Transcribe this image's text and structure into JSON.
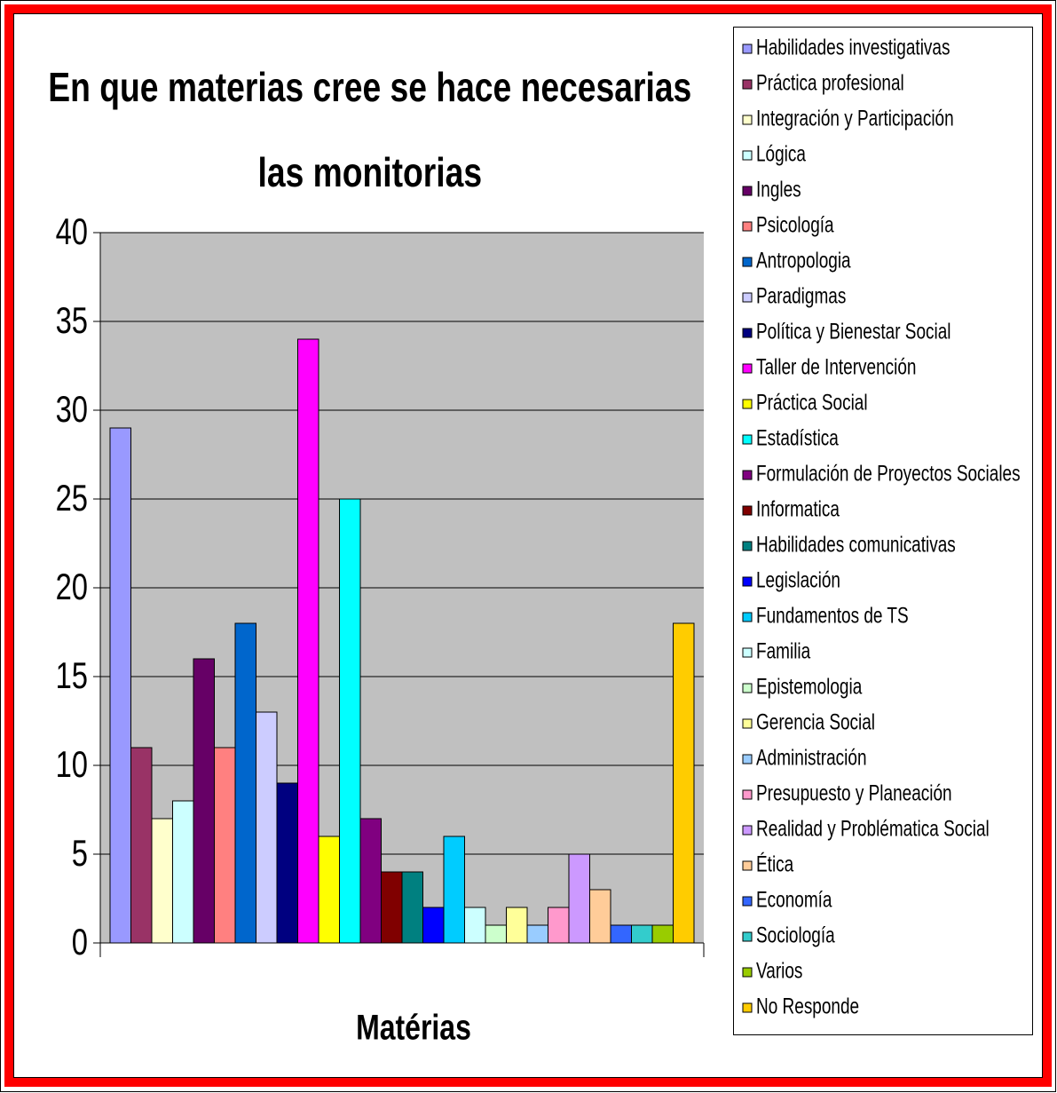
{
  "chart_data": {
    "type": "bar",
    "title": "En que materias cree se hace necesarias las monitorias",
    "x_label": "Matérias",
    "ylim": [
      0,
      40
    ],
    "yticks": [
      0,
      5,
      10,
      15,
      20,
      25,
      30,
      35,
      40
    ],
    "grid": true,
    "legend": "right",
    "series": [
      {
        "name": "Habilidades investigativas",
        "color": "#9999ff",
        "values": [
          29
        ]
      },
      {
        "name": "Práctica profesional",
        "color": "#993366",
        "values": [
          11
        ]
      },
      {
        "name": "Integración y Participación",
        "color": "#ffffcc",
        "values": [
          7
        ]
      },
      {
        "name": "Lógica",
        "color": "#ccffff",
        "values": [
          8
        ]
      },
      {
        "name": "Ingles",
        "color": "#660066",
        "values": [
          16
        ]
      },
      {
        "name": "Psicología",
        "color": "#ff8080",
        "values": [
          11
        ]
      },
      {
        "name": "Antropologia",
        "color": "#0066cc",
        "values": [
          18
        ]
      },
      {
        "name": "Paradigmas",
        "color": "#ccccff",
        "values": [
          13
        ]
      },
      {
        "name": "Política y Bienestar Social",
        "color": "#000080",
        "values": [
          9
        ]
      },
      {
        "name": "Taller de Intervención",
        "color": "#ff00ff",
        "values": [
          34
        ]
      },
      {
        "name": "Práctica Social",
        "color": "#ffff00",
        "values": [
          6
        ]
      },
      {
        "name": "Estadística",
        "color": "#00ffff",
        "values": [
          25
        ]
      },
      {
        "name": "Formulación de Proyectos Sociales",
        "color": "#800080",
        "values": [
          7
        ]
      },
      {
        "name": "Informatica",
        "color": "#800000",
        "values": [
          4
        ]
      },
      {
        "name": "Habilidades comunicativas",
        "color": "#008080",
        "values": [
          4
        ]
      },
      {
        "name": "Legislación",
        "color": "#0000ff",
        "values": [
          2
        ]
      },
      {
        "name": "Fundamentos de TS",
        "color": "#00ccff",
        "values": [
          6
        ]
      },
      {
        "name": "Familia",
        "color": "#ccffff",
        "values": [
          2
        ]
      },
      {
        "name": "Epistemologia",
        "color": "#ccffcc",
        "values": [
          1
        ]
      },
      {
        "name": "Gerencia Social",
        "color": "#ffff99",
        "values": [
          2
        ]
      },
      {
        "name": "Administración",
        "color": "#99ccff",
        "values": [
          1
        ]
      },
      {
        "name": "Presupuesto y Planeación",
        "color": "#ff99cc",
        "values": [
          2
        ]
      },
      {
        "name": "Realidad y Problématica Social",
        "color": "#cc99ff",
        "values": [
          5
        ]
      },
      {
        "name": "Ética",
        "color": "#ffcc99",
        "values": [
          3
        ]
      },
      {
        "name": "Economía",
        "color": "#3366ff",
        "values": [
          1
        ]
      },
      {
        "name": "Sociología",
        "color": "#33cccc",
        "values": [
          1
        ]
      },
      {
        "name": "Varios",
        "color": "#99cc00",
        "values": [
          1
        ]
      },
      {
        "name": "No Responde",
        "color": "#ffcc00",
        "values": [
          18
        ]
      }
    ]
  }
}
